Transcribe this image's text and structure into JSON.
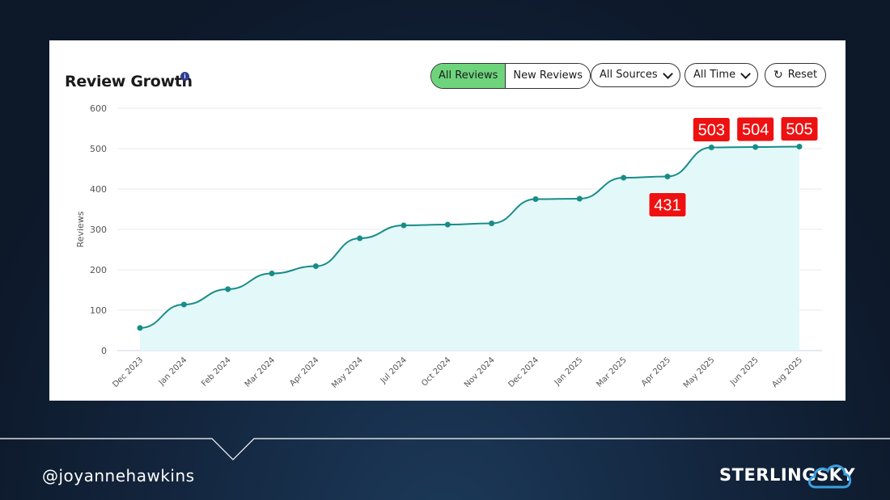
{
  "card": {
    "title": "Review Growth",
    "info_glyph": "i",
    "controls": {
      "all_reviews": "All Reviews",
      "new_reviews": "New Reviews",
      "all_sources": "All Sources",
      "all_time": "All Time",
      "reset": "Reset"
    }
  },
  "footer": {
    "handle": "@joyannehawkins",
    "logo_left": "STERLING",
    "logo_right": "SKY"
  },
  "colors": {
    "line": "#178c88",
    "fill": "#e3f8f8",
    "active_tab": "#6ed47c",
    "callout": "#ee1111",
    "grid": "#e8e8e8"
  },
  "chart_data": {
    "type": "area",
    "title": "Review Growth",
    "xlabel": "",
    "ylabel": "Reviews",
    "ylim": [
      0,
      600
    ],
    "yticks": [
      0,
      100,
      200,
      300,
      400,
      500,
      600
    ],
    "grid": true,
    "categories": [
      "Dec 2023",
      "Jan 2024",
      "Feb 2024",
      "Mar 2024",
      "Apr 2024",
      "May 2024",
      "Jul 2024",
      "Oct 2024",
      "Nov 2024",
      "Dec 2024",
      "Jan 2025",
      "Mar 2025",
      "Apr 2025",
      "May 2025",
      "Jun 2025",
      "Aug 2025"
    ],
    "series": [
      {
        "values": [
          56,
          114,
          152,
          191,
          209,
          278,
          310,
          312,
          315,
          375,
          376,
          428,
          431,
          503,
          504,
          505
        ]
      }
    ],
    "annotations": [
      {
        "category": "Apr 2025",
        "text": "431",
        "placement": "below"
      },
      {
        "category": "May 2025",
        "text": "503",
        "placement": "above"
      },
      {
        "category": "Jun 2025",
        "text": "504",
        "placement": "above"
      },
      {
        "category": "Aug 2025",
        "text": "505",
        "placement": "above"
      }
    ]
  }
}
